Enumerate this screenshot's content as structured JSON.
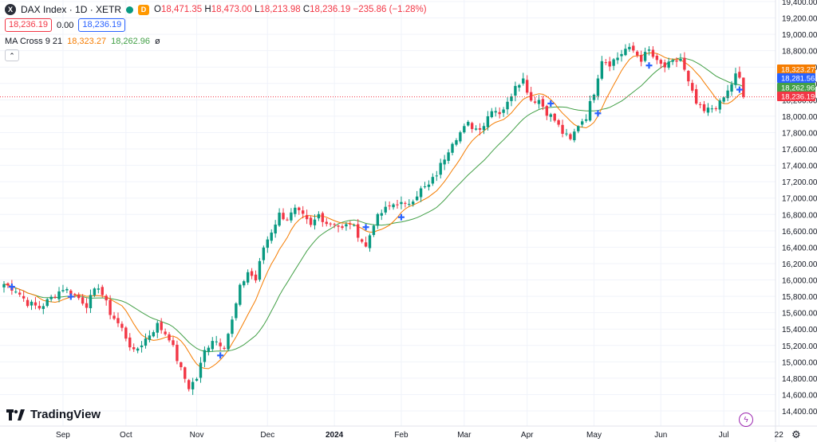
{
  "legend": {
    "symbol_icon_letter": "X",
    "title": "DAX Index · 1D · XETR",
    "ohlc": {
      "o_label": "O",
      "o": "18,471.35",
      "h_label": "H",
      "h": "18,473.00",
      "l_label": "L",
      "l": "18,213.98",
      "c_label": "C",
      "c": "18,236.19",
      "change": "−235.86 (−1.28%)"
    },
    "sell": "18,236.19",
    "spread": "0.00",
    "buy": "18,236.19",
    "indicator": {
      "name": "MA Cross 9 21",
      "fast": "18,323.27",
      "slow": "18,262.96",
      "suffix": "ø"
    },
    "delayed_badge": "D"
  },
  "brand": "TradingView",
  "colors": {
    "up": "#089981",
    "down": "#f23645",
    "fast_ma": "#f57c00",
    "slow_ma": "#43a047",
    "cross": "#2962ff",
    "last_price": "#f23645",
    "fast_tag": "#f57c00",
    "slow_tag": "#43a047",
    "mid_tag": "#2962ff"
  },
  "chart_data": {
    "type": "candlestick",
    "title": "DAX Index · 1D · XETR",
    "ylim": [
      14400,
      19400
    ],
    "y_ticks": [
      14400,
      14600,
      14800,
      15000,
      15200,
      15400,
      15600,
      15800,
      16000,
      16200,
      16400,
      16600,
      16800,
      17000,
      17200,
      17400,
      17600,
      17800,
      18000,
      18200,
      18400,
      18600,
      18800,
      19000,
      19200,
      19400
    ],
    "x_ticks": [
      "Sep",
      "Oct",
      "Nov",
      "Dec",
      "2024",
      "Feb",
      "Mar",
      "Apr",
      "May",
      "Jun",
      "Jul",
      "22"
    ],
    "x_tick_index": [
      15,
      31,
      49,
      67,
      84,
      101,
      117,
      133,
      150,
      167,
      183,
      197
    ],
    "num_bars": 200,
    "price_anchors": [
      [
        0,
        15950
      ],
      [
        3,
        15880
      ],
      [
        6,
        15720
      ],
      [
        9,
        15660
      ],
      [
        12,
        15780
      ],
      [
        15,
        15900
      ],
      [
        18,
        15820
      ],
      [
        21,
        15700
      ],
      [
        24,
        15930
      ],
      [
        27,
        15600
      ],
      [
        30,
        15400
      ],
      [
        33,
        15110
      ],
      [
        36,
        15280
      ],
      [
        39,
        15450
      ],
      [
        42,
        15300
      ],
      [
        45,
        14900
      ],
      [
        47,
        14690
      ],
      [
        49,
        14800
      ],
      [
        51,
        15130
      ],
      [
        53,
        15280
      ],
      [
        56,
        15200
      ],
      [
        58,
        15500
      ],
      [
        60,
        15900
      ],
      [
        62,
        16100
      ],
      [
        64,
        16000
      ],
      [
        66,
        16400
      ],
      [
        68,
        16600
      ],
      [
        70,
        16800
      ],
      [
        72,
        16750
      ],
      [
        74,
        16850
      ],
      [
        76,
        16770
      ],
      [
        78,
        16650
      ],
      [
        80,
        16800
      ],
      [
        82,
        16700
      ],
      [
        84,
        16700
      ],
      [
        86,
        16620
      ],
      [
        88,
        16700
      ],
      [
        90,
        16560
      ],
      [
        92,
        16400
      ],
      [
        94,
        16700
      ],
      [
        96,
        16820
      ],
      [
        98,
        16900
      ],
      [
        100,
        16950
      ],
      [
        102,
        16900
      ],
      [
        104,
        17000
      ],
      [
        106,
        17100
      ],
      [
        108,
        17150
      ],
      [
        110,
        17300
      ],
      [
        112,
        17500
      ],
      [
        114,
        17700
      ],
      [
        116,
        17800
      ],
      [
        118,
        17900
      ],
      [
        120,
        17850
      ],
      [
        122,
        17900
      ],
      [
        124,
        18100
      ],
      [
        126,
        18050
      ],
      [
        128,
        18150
      ],
      [
        130,
        18400
      ],
      [
        132,
        18450
      ],
      [
        134,
        18200
      ],
      [
        136,
        18200
      ],
      [
        138,
        18050
      ],
      [
        140,
        17950
      ],
      [
        142,
        17800
      ],
      [
        144,
        17700
      ],
      [
        146,
        17900
      ],
      [
        148,
        18000
      ],
      [
        150,
        18300
      ],
      [
        152,
        18700
      ],
      [
        154,
        18650
      ],
      [
        156,
        18720
      ],
      [
        158,
        18820
      ],
      [
        160,
        18800
      ],
      [
        162,
        18700
      ],
      [
        164,
        18800
      ],
      [
        166,
        18650
      ],
      [
        168,
        18600
      ],
      [
        170,
        18650
      ],
      [
        172,
        18700
      ],
      [
        174,
        18400
      ],
      [
        176,
        18150
      ],
      [
        178,
        18050
      ],
      [
        180,
        18100
      ],
      [
        182,
        18150
      ],
      [
        184,
        18300
      ],
      [
        186,
        18500
      ],
      [
        187,
        18471
      ],
      [
        188,
        18236
      ]
    ],
    "series": [
      {
        "name": "MA Cross 9 21 (9)",
        "last": 18323.27
      },
      {
        "name": "MA Cross 9 21 (21)",
        "last": 18262.96
      }
    ],
    "cross_markers_index": [
      2,
      17,
      55,
      92,
      101,
      139,
      151,
      164,
      187
    ],
    "last_close": 18236.19,
    "price_tags": [
      {
        "value": 18323.27,
        "label": "18,323.27",
        "kind": "fast"
      },
      {
        "value": 18281.56,
        "label": "18,281.56",
        "kind": "mid"
      },
      {
        "value": 18262.96,
        "label": "18,262.96",
        "kind": "slow"
      },
      {
        "value": 18236.19,
        "label": "18,236.19",
        "kind": "last"
      }
    ]
  }
}
